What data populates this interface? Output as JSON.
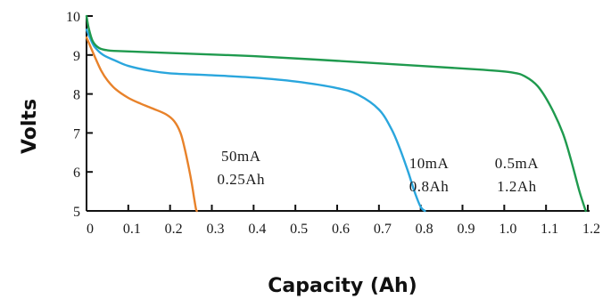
{
  "chart_data": {
    "type": "line",
    "title": "",
    "xlabel": "Capacity (Ah)",
    "ylabel": "Volts",
    "xlim": [
      0,
      1.2
    ],
    "ylim": [
      5,
      10
    ],
    "grid": false,
    "xticks": [
      "0",
      "0.1",
      "0.2",
      "0.3",
      "0.4",
      "0.5",
      "0.6",
      "0.7",
      "0.8",
      "0.9",
      "1.0",
      "1.1",
      "1.2"
    ],
    "yticks": [
      "5",
      "6",
      "7",
      "8",
      "9",
      "10"
    ],
    "colors": {
      "orange": "#e8822a",
      "blue": "#2aa6dd",
      "green": "#1f9a4e"
    },
    "series": [
      {
        "color": "#e8822a",
        "x": [
          0,
          0.01,
          0.02,
          0.035,
          0.05,
          0.07,
          0.1,
          0.13,
          0.16,
          0.19,
          0.21,
          0.225,
          0.235,
          0.245,
          0.252,
          0.258,
          0.262,
          0.264
        ],
        "y": [
          9.45,
          9.2,
          8.95,
          8.6,
          8.35,
          8.12,
          7.9,
          7.75,
          7.62,
          7.48,
          7.3,
          7.0,
          6.6,
          6.1,
          5.7,
          5.3,
          5.05,
          5.0
        ]
      },
      {
        "color": "#2aa6dd",
        "x": [
          0,
          0.01,
          0.02,
          0.04,
          0.07,
          0.1,
          0.15,
          0.2,
          0.3,
          0.4,
          0.5,
          0.6,
          0.65,
          0.7,
          0.73,
          0.75,
          0.77,
          0.785,
          0.8,
          0.81
        ],
        "y": [
          9.65,
          9.4,
          9.2,
          9.0,
          8.85,
          8.72,
          8.6,
          8.53,
          8.48,
          8.42,
          8.32,
          8.15,
          7.98,
          7.6,
          7.1,
          6.6,
          6.0,
          5.5,
          5.1,
          5.0
        ]
      },
      {
        "color": "#1f9a4e",
        "x": [
          0,
          0.005,
          0.015,
          0.03,
          0.05,
          0.08,
          0.2,
          0.4,
          0.6,
          0.8,
          0.95,
          1.02,
          1.05,
          1.08,
          1.11,
          1.14,
          1.16,
          1.18,
          1.195
        ],
        "y": [
          10.0,
          9.7,
          9.35,
          9.18,
          9.12,
          9.1,
          9.05,
          8.97,
          8.85,
          8.72,
          8.62,
          8.55,
          8.45,
          8.2,
          7.7,
          7.0,
          6.3,
          5.5,
          5.0
        ]
      }
    ],
    "annotations": [
      {
        "lines": [
          "50mA",
          "0.25Ah"
        ],
        "x": 0.37,
        "y": 6.28
      },
      {
        "lines": [
          "10mA",
          "0.8Ah"
        ],
        "x": 0.82,
        "y": 6.1
      },
      {
        "lines": [
          "0.5mA",
          "1.2Ah"
        ],
        "x": 1.03,
        "y": 6.1
      }
    ]
  }
}
